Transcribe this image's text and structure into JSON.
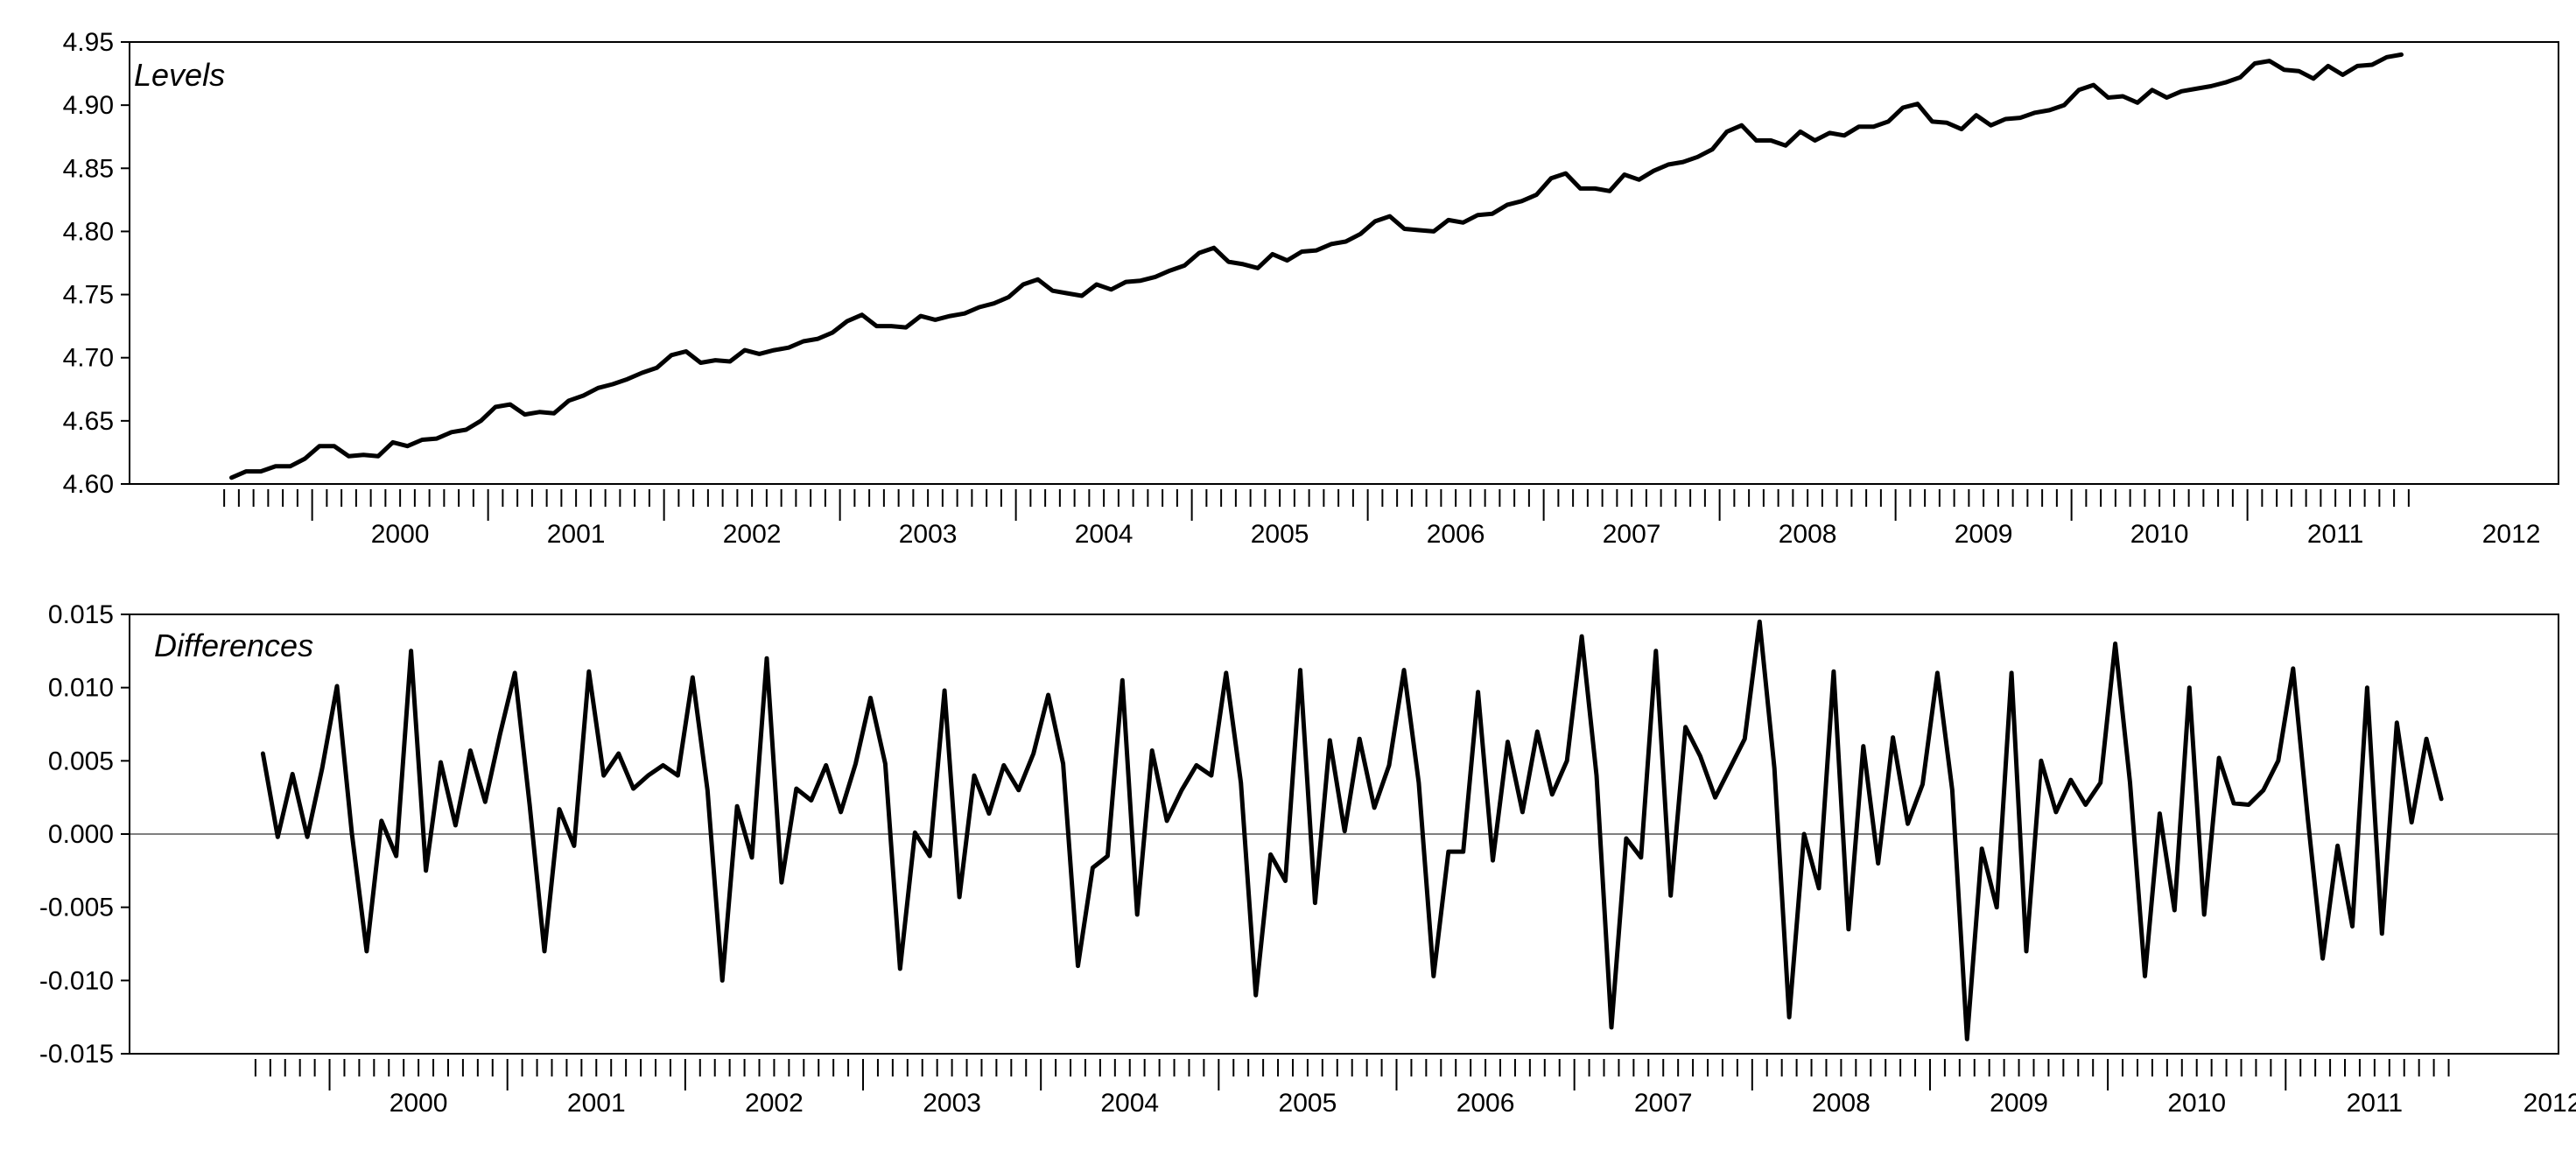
{
  "chart_data": [
    {
      "type": "line",
      "title": "Levels",
      "xlabel": "",
      "ylabel": "",
      "x_tick_labels": [
        "2000",
        "2001",
        "2002",
        "2003",
        "2004",
        "2005",
        "2006",
        "2007",
        "2008",
        "2009",
        "2010",
        "2011",
        "2012"
      ],
      "y_tick_labels": [
        "4.60",
        "4.65",
        "4.70",
        "4.75",
        "4.80",
        "4.85",
        "4.90",
        "4.95"
      ],
      "ylim": [
        4.6,
        4.95
      ],
      "x_start": "1999-07",
      "grid": false,
      "series": [
        {
          "values": [
            4.605,
            4.61,
            4.61,
            4.614,
            4.614,
            4.62,
            4.63,
            4.63,
            4.622,
            4.623,
            4.622,
            4.633,
            4.63,
            4.635,
            4.636,
            4.641,
            4.643,
            4.65,
            4.661,
            4.663,
            4.655,
            4.657,
            4.656,
            4.666,
            4.67,
            4.676,
            4.679,
            4.683,
            4.688,
            4.692,
            4.702,
            4.705,
            4.696,
            4.698,
            4.697,
            4.706,
            4.703,
            4.706,
            4.708,
            4.713,
            4.715,
            4.72,
            4.729,
            4.734,
            4.725,
            4.725,
            4.724,
            4.733,
            4.73,
            4.733,
            4.735,
            4.74,
            4.743,
            4.748,
            4.758,
            4.762,
            4.753,
            4.751,
            4.749,
            4.758,
            4.754,
            4.76,
            4.761,
            4.764,
            4.769,
            4.773,
            4.783,
            4.787,
            4.776,
            4.774,
            4.771,
            4.782,
            4.777,
            4.784,
            4.785,
            4.79,
            4.792,
            4.798,
            4.808,
            4.812,
            4.802,
            4.801,
            4.8,
            4.809,
            4.807,
            4.813,
            4.814,
            4.821,
            4.824,
            4.829,
            4.842,
            4.846,
            4.834,
            4.834,
            4.832,
            4.845,
            4.841,
            4.848,
            4.853,
            4.855,
            4.859,
            4.865,
            4.879,
            4.884,
            4.872,
            4.872,
            4.868,
            4.879,
            4.872,
            4.878,
            4.876,
            4.883,
            4.883,
            4.887,
            4.898,
            4.901,
            4.887,
            4.886,
            4.881,
            4.892,
            4.884,
            4.889,
            4.89,
            4.894,
            4.896,
            4.9,
            4.912,
            4.916,
            4.906,
            4.907,
            4.902,
            4.912,
            4.906,
            4.911,
            4.913,
            4.915,
            4.918,
            4.922,
            4.933,
            4.935,
            4.928,
            4.927,
            4.921,
            4.931,
            4.924,
            4.931,
            4.932,
            4.938,
            4.94
          ]
        }
      ]
    },
    {
      "type": "line",
      "title": "Differences",
      "xlabel": "",
      "ylabel": "",
      "x_tick_labels": [
        "2000",
        "2001",
        "2002",
        "2003",
        "2004",
        "2005",
        "2006",
        "2007",
        "2008",
        "2009",
        "2010",
        "2011",
        "2012"
      ],
      "y_tick_labels": [
        "0.015",
        "0.010",
        "0.005",
        "0.000",
        "-0.005",
        "-0.010",
        "-0.015"
      ],
      "ylim": [
        -0.015,
        0.015
      ],
      "x_start": "1999-08",
      "grid": false,
      "reference_line": 0.0,
      "series": [
        {
          "values": [
            0.0055,
            -0.0002,
            0.0041,
            -0.0002,
            0.0045,
            0.0101,
            0.0001,
            -0.008,
            0.0009,
            -0.0015,
            0.0125,
            -0.0025,
            0.0049,
            0.0006,
            0.0057,
            0.0022,
            0.0068,
            0.011,
            0.002,
            -0.008,
            0.0017,
            -0.0008,
            0.0111,
            0.004,
            0.0055,
            0.0031,
            0.004,
            0.0047,
            0.004,
            0.0107,
            0.003,
            -0.01,
            0.0019,
            -0.0016,
            0.012,
            -0.0033,
            0.0031,
            0.0023,
            0.0047,
            0.0015,
            0.0048,
            0.0093,
            0.0048,
            -0.0092,
            0.0001,
            -0.0015,
            0.0098,
            -0.0043,
            0.004,
            0.0014,
            0.0047,
            0.003,
            0.0055,
            0.0095,
            0.0048,
            -0.009,
            -0.0023,
            -0.0015,
            0.0105,
            -0.0055,
            0.0057,
            0.0009,
            0.003,
            0.0047,
            0.004,
            0.011,
            0.0035,
            -0.011,
            -0.0014,
            -0.0032,
            0.0112,
            -0.0047,
            0.0064,
            0.0002,
            0.0065,
            0.0018,
            0.0047,
            0.0112,
            0.0035,
            -0.0097,
            -0.0012,
            -0.0012,
            0.0097,
            -0.0018,
            0.0063,
            0.0015,
            0.007,
            0.0027,
            0.005,
            0.0135,
            0.004,
            -0.0132,
            -0.0003,
            -0.0016,
            0.0125,
            -0.0042,
            0.0073,
            0.0053,
            0.0025,
            0.0045,
            0.0065,
            0.0145,
            0.0045,
            -0.0125,
            0.0,
            -0.0037,
            0.0111,
            -0.0065,
            0.006,
            -0.002,
            0.0066,
            0.0007,
            0.0034,
            0.011,
            0.003,
            -0.014,
            -0.001,
            -0.005,
            0.011,
            -0.008,
            0.005,
            0.0015,
            0.0037,
            0.002,
            0.0035,
            0.013,
            0.0035,
            -0.0097,
            0.0014,
            -0.0052,
            0.01,
            -0.0055,
            0.0052,
            0.0021,
            0.002,
            0.003,
            0.005,
            0.0113,
            0.001,
            -0.0085,
            -0.0008,
            -0.0063,
            0.01,
            -0.0068,
            0.0076,
            0.0008,
            0.0065,
            0.0024
          ]
        }
      ]
    }
  ]
}
